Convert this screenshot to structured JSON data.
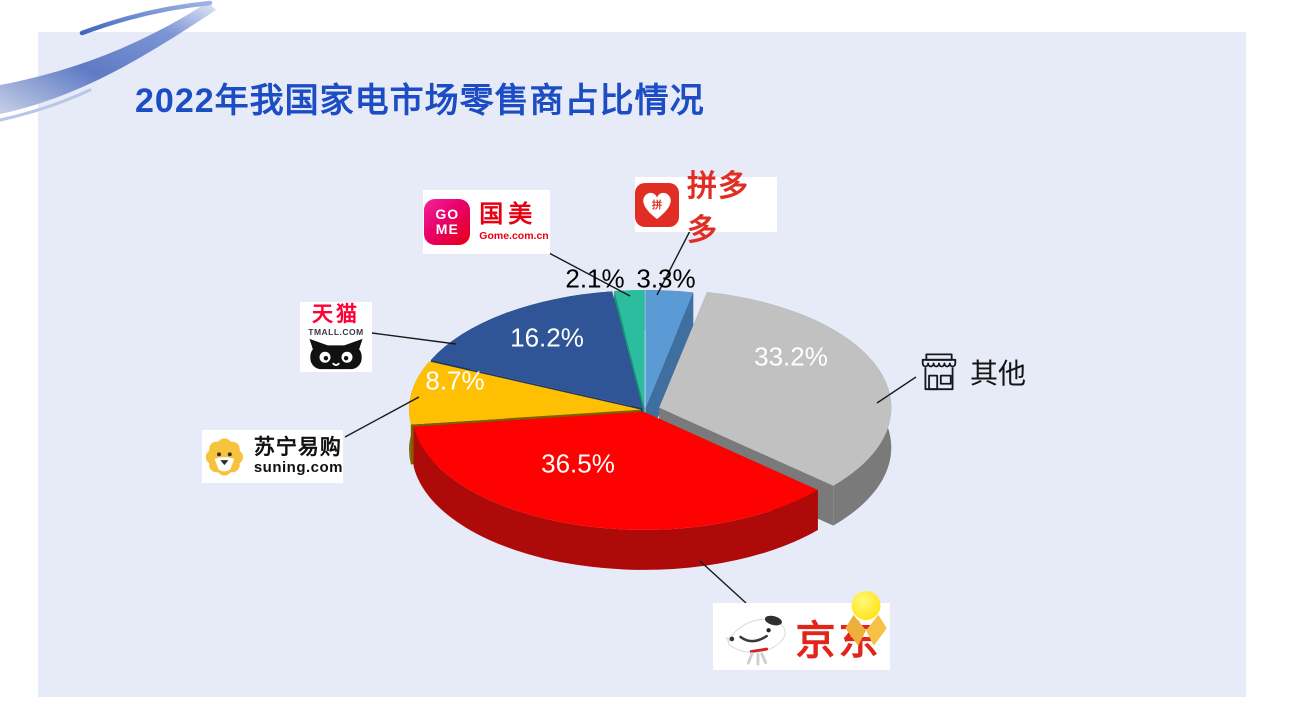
{
  "slide": {
    "title": "2022年我国家电市场零售商占比情况",
    "title_color": "#1C4DC5",
    "panel_color": "#E7EBF7"
  },
  "chart_data": {
    "type": "pie",
    "style": "3d-exploded",
    "title": "2022年我国家电市场零售商占比情况",
    "value_unit": "%",
    "start_angle_deg": -90,
    "direction": "clockwise",
    "legend_position": "none",
    "series": [
      {
        "key": "pinduoduo",
        "name": "拼多多",
        "value": 3.3,
        "label": "3.3%",
        "color": "#5B9BD5",
        "side_color": "#3E6F9E",
        "label_placement": "outside"
      },
      {
        "key": "others",
        "name": "其他",
        "value": 33.2,
        "label": "33.2%",
        "color": "#C1C1C1",
        "side_color": "#7A7A7A",
        "label_placement": "inside"
      },
      {
        "key": "jd",
        "name": "京东",
        "value": 36.5,
        "label": "36.5%",
        "color": "#FE0101",
        "side_color": "#AF0A0A",
        "label_placement": "inside"
      },
      {
        "key": "suning",
        "name": "苏宁易购",
        "value": 8.7,
        "label": "8.7%",
        "color": "#FFC003",
        "side_color": "#7F6000",
        "label_placement": "inside"
      },
      {
        "key": "tmall",
        "name": "天猫",
        "value": 16.2,
        "label": "16.2%",
        "color": "#2F5597",
        "side_color": "#1F3864",
        "label_placement": "inside"
      },
      {
        "key": "gome",
        "name": "国美",
        "value": 2.1,
        "label": "2.1%",
        "color": "#2CBD9E",
        "side_color": "#17907A",
        "label_placement": "outside"
      }
    ]
  },
  "logos": {
    "gome": {
      "badge_line1": "GO",
      "badge_line2": "ME",
      "name": "国美",
      "url": "Gome.com.cn",
      "brand_color": "#E60012"
    },
    "pinduoduo": {
      "badge_char": "拼",
      "name": "拼多多",
      "brand_color": "#E02E24"
    },
    "tmall": {
      "name": "天猫",
      "url": "TMALL.COM",
      "brand_color": "#FF0036"
    },
    "suning": {
      "name": "苏宁易购",
      "url": "suning.com",
      "brand_color": "#FDC52F"
    },
    "jd": {
      "name": "京东",
      "brand_color": "#E1251B"
    },
    "others": {
      "name": "其他"
    }
  }
}
